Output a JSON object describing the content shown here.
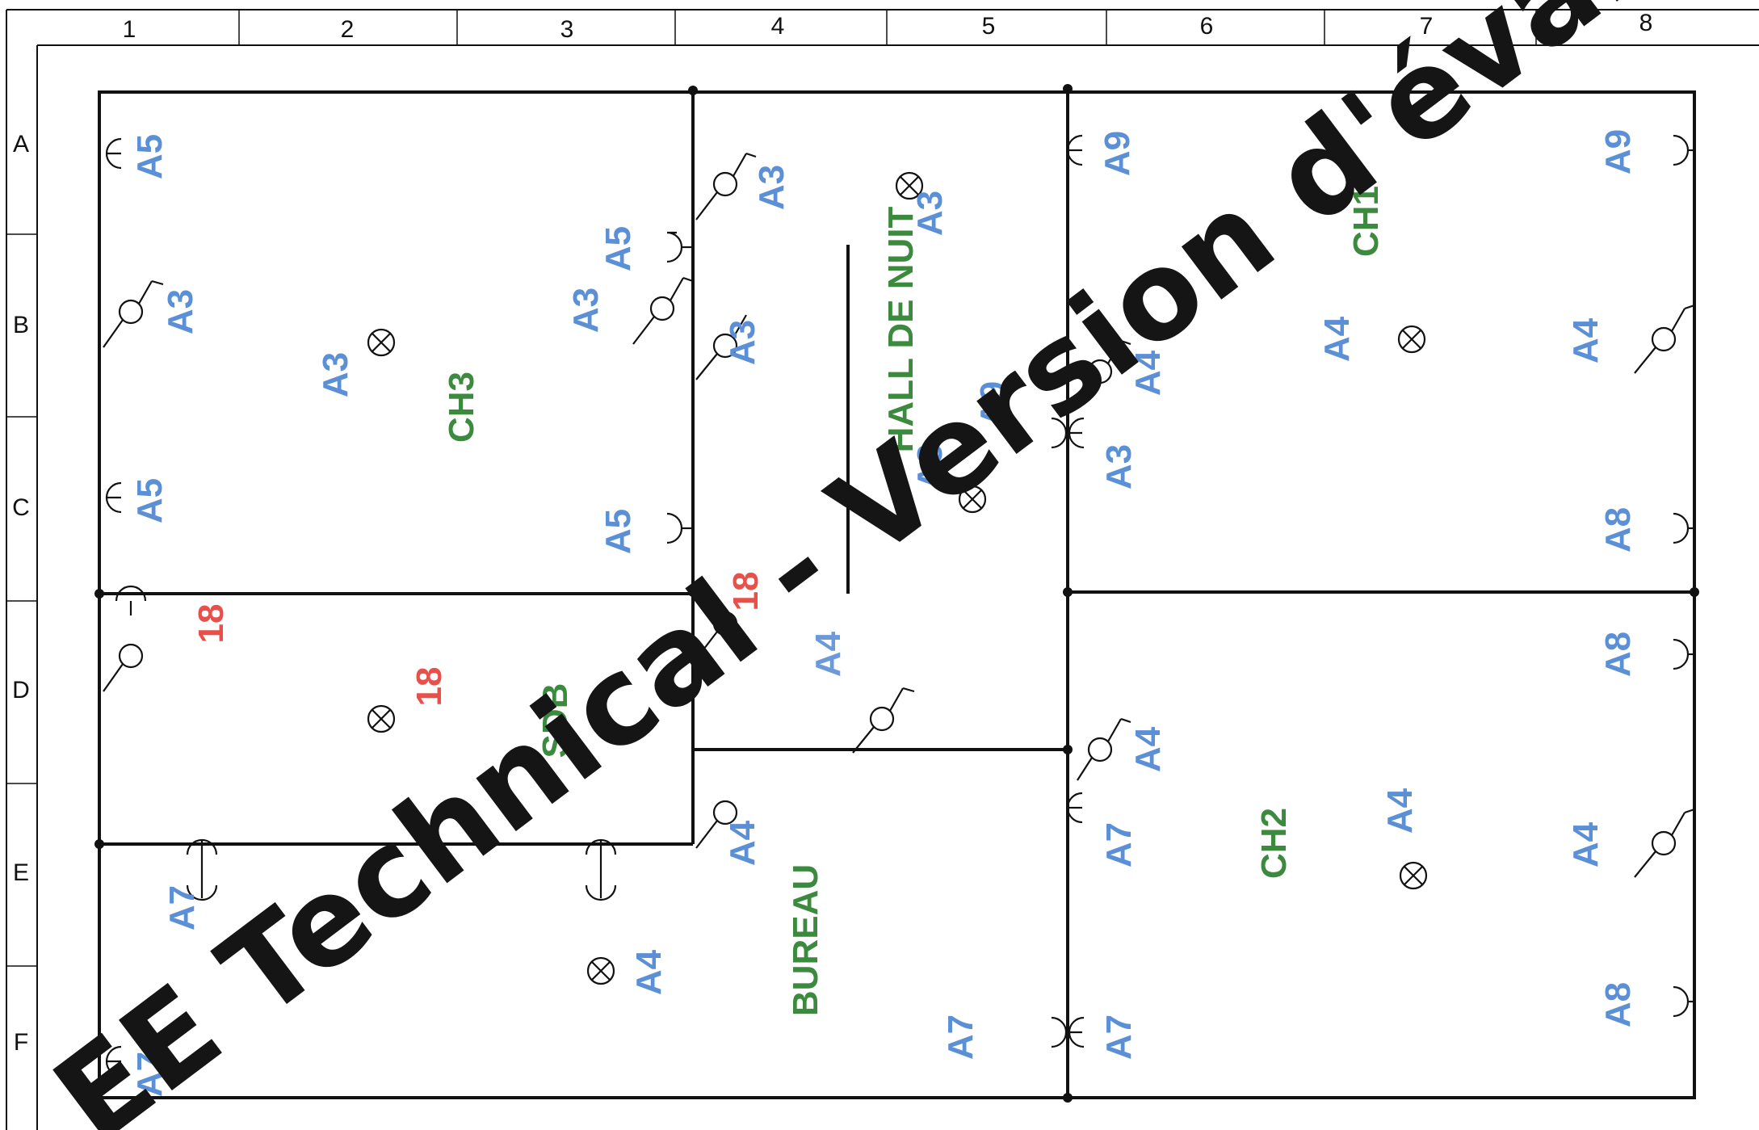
{
  "grid": {
    "columns": [
      "1",
      "2",
      "3",
      "4",
      "5",
      "6",
      "7",
      "8"
    ],
    "rows": [
      "A",
      "B",
      "C",
      "D",
      "E",
      "F"
    ]
  },
  "rooms": [
    {
      "label": "CH3"
    },
    {
      "label": "HALL DE NUIT"
    },
    {
      "label": "CH1"
    },
    {
      "label": "SDB"
    },
    {
      "label": "BUREAU"
    },
    {
      "label": "CH2"
    }
  ],
  "circuit_labels": [
    "A5",
    "A5",
    "A3",
    "A3",
    "A5",
    "A3",
    "A5",
    "A3",
    "A3",
    "A3",
    "A3",
    "A9",
    "A3",
    "A9",
    "A4",
    "A4",
    "A9",
    "A4",
    "A9",
    "A8",
    "18",
    "18",
    "18",
    "A4",
    "A8",
    "A7",
    "A4",
    "A4",
    "A7",
    "A4",
    "A7",
    "A4",
    "A8",
    "A7",
    "A7",
    "A4",
    "A8"
  ],
  "watermark": "EE Technical - Version d'évalua",
  "colors": {
    "circuit": "#5b8fd6",
    "room": "#3b8a3e",
    "special": "#e8504a",
    "walls": "#111111"
  }
}
